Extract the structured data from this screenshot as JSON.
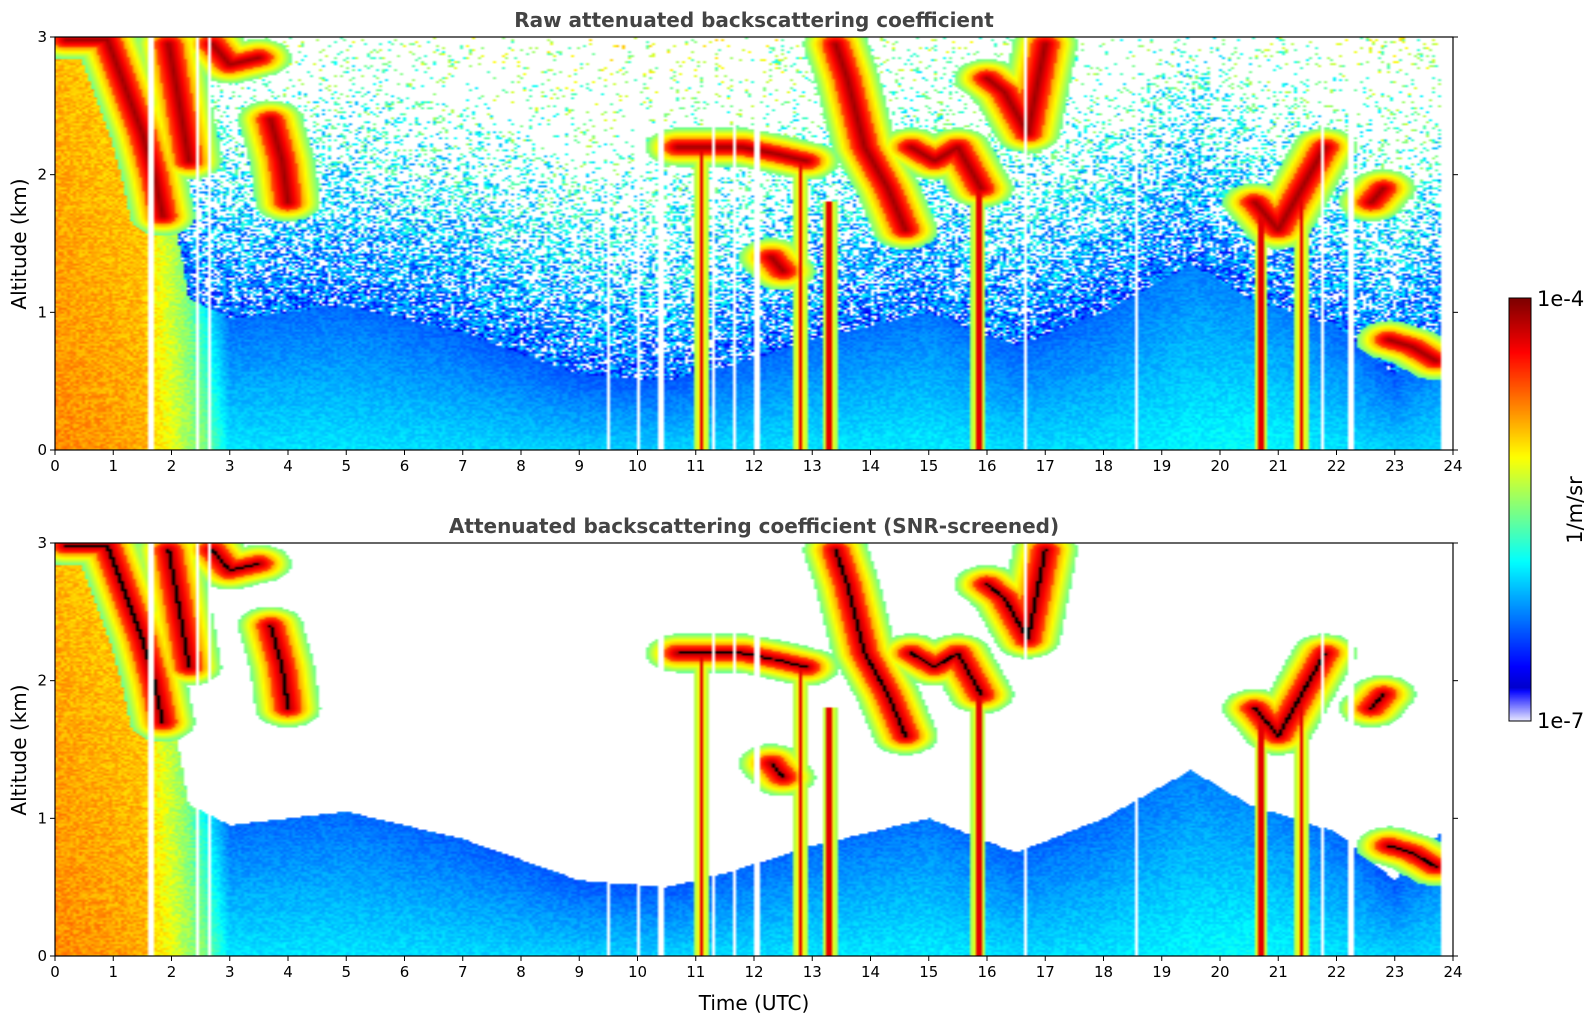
{
  "chart_data": [
    {
      "type": "heatmap",
      "title": "Raw attenuated backscattering coefficient",
      "xlabel": "",
      "ylabel": "Altitude (km)",
      "xlim": [
        0,
        24
      ],
      "ylim": [
        0,
        3
      ],
      "xticks": [
        "0",
        "1",
        "2",
        "3",
        "4",
        "5",
        "6",
        "7",
        "8",
        "9",
        "10",
        "11",
        "12",
        "13",
        "14",
        "15",
        "16",
        "17",
        "18",
        "19",
        "20",
        "21",
        "22",
        "23",
        "24"
      ],
      "yticks": [
        "0",
        "1",
        "2",
        "3"
      ],
      "screened": false
    },
    {
      "type": "heatmap",
      "title": "Attenuated backscattering coefficient (SNR-screened)",
      "xlabel": "Time (UTC)",
      "ylabel": "Altitude (km)",
      "xlim": [
        0,
        24
      ],
      "ylim": [
        0,
        3
      ],
      "xticks": [
        "0",
        "1",
        "2",
        "3",
        "4",
        "5",
        "6",
        "7",
        "8",
        "9",
        "10",
        "11",
        "12",
        "13",
        "14",
        "15",
        "16",
        "17",
        "18",
        "19",
        "20",
        "21",
        "22",
        "23",
        "24"
      ],
      "yticks": [
        "0",
        "1",
        "2",
        "3"
      ],
      "screened": true
    }
  ],
  "colorbar": {
    "label": "1/m/sr",
    "max_label": "1e-4",
    "min_label": "1e-7",
    "scale": "log",
    "colormap": "jet"
  },
  "features": {
    "data_end_hour": 23.8,
    "near_surface_layers": [
      {
        "hour": 0.0,
        "top_km": 3.0,
        "level": 0.75
      },
      {
        "hour": 1.5,
        "top_km": 3.0,
        "level": 0.72
      },
      {
        "hour": 2.3,
        "top_km": 1.1,
        "level": 0.55
      },
      {
        "hour": 3.0,
        "top_km": 0.95,
        "level": 0.3
      },
      {
        "hour": 5.0,
        "top_km": 1.05,
        "level": 0.3
      },
      {
        "hour": 7.0,
        "top_km": 0.85,
        "level": 0.29
      },
      {
        "hour": 9.0,
        "top_km": 0.55,
        "level": 0.28
      },
      {
        "hour": 10.5,
        "top_km": 0.5,
        "level": 0.28
      },
      {
        "hour": 11.5,
        "top_km": 0.6,
        "level": 0.29
      },
      {
        "hour": 13.0,
        "top_km": 0.8,
        "level": 0.3
      },
      {
        "hour": 15.0,
        "top_km": 1.0,
        "level": 0.31
      },
      {
        "hour": 16.5,
        "top_km": 0.75,
        "level": 0.29
      },
      {
        "hour": 18.0,
        "top_km": 1.0,
        "level": 0.3
      },
      {
        "hour": 19.5,
        "top_km": 1.35,
        "level": 0.32
      },
      {
        "hour": 20.5,
        "top_km": 1.1,
        "level": 0.33
      },
      {
        "hour": 22.0,
        "top_km": 0.9,
        "level": 0.3
      },
      {
        "hour": 23.0,
        "top_km": 0.55,
        "level": 0.28
      },
      {
        "hour": 23.8,
        "top_km": 0.9,
        "level": 0.29
      }
    ],
    "cloud_segments": [
      [
        [
          0.2,
          2.98
        ],
        [
          0.9,
          2.98
        ],
        [
          1.5,
          2.3
        ],
        [
          1.7,
          2.0
        ],
        [
          1.85,
          1.7
        ]
      ],
      [
        [
          1.95,
          2.95
        ],
        [
          2.1,
          2.6
        ],
        [
          2.3,
          2.1
        ]
      ],
      [
        [
          2.7,
          2.95
        ],
        [
          3.0,
          2.8
        ],
        [
          3.5,
          2.85
        ]
      ],
      [
        [
          3.7,
          2.4
        ],
        [
          3.9,
          2.1
        ],
        [
          4.0,
          1.8
        ]
      ],
      [
        [
          10.7,
          2.2
        ],
        [
          11.2,
          2.2
        ],
        [
          11.8,
          2.2
        ],
        [
          12.4,
          2.15
        ],
        [
          12.9,
          2.1
        ]
      ],
      [
        [
          13.4,
          2.95
        ],
        [
          13.6,
          2.7
        ],
        [
          13.9,
          2.2
        ],
        [
          14.3,
          1.9
        ],
        [
          14.6,
          1.6
        ]
      ],
      [
        [
          14.7,
          2.2
        ],
        [
          15.1,
          2.1
        ],
        [
          15.5,
          2.2
        ],
        [
          15.9,
          1.9
        ]
      ],
      [
        [
          16.0,
          2.7
        ],
        [
          16.3,
          2.6
        ],
        [
          16.7,
          2.3
        ],
        [
          17.0,
          2.95
        ]
      ],
      [
        [
          20.6,
          1.8
        ],
        [
          21.0,
          1.6
        ],
        [
          21.4,
          1.9
        ],
        [
          21.8,
          2.2
        ]
      ],
      [
        [
          22.6,
          1.8
        ],
        [
          22.8,
          1.9
        ]
      ],
      [
        [
          12.3,
          1.4
        ],
        [
          12.5,
          1.3
        ]
      ],
      [
        [
          22.9,
          0.8
        ],
        [
          23.3,
          0.75
        ],
        [
          23.7,
          0.65
        ]
      ]
    ],
    "precip_columns": [
      {
        "hour": 12.8,
        "bottom_km": 0.0,
        "top_km": 2.1
      },
      {
        "hour": 13.3,
        "bottom_km": 0.0,
        "top_km": 1.8
      },
      {
        "hour": 15.85,
        "bottom_km": 0.0,
        "top_km": 1.9
      },
      {
        "hour": 21.4,
        "bottom_km": 0.0,
        "top_km": 1.9
      },
      {
        "hour": 11.1,
        "bottom_km": 0.0,
        "top_km": 2.2
      },
      {
        "hour": 20.7,
        "bottom_km": 0.0,
        "top_km": 1.7
      }
    ],
    "gap_hours": [
      1.65,
      2.45,
      2.65,
      9.5,
      10.0,
      10.4,
      11.3,
      11.65,
      12.05,
      16.65,
      18.55,
      21.75,
      22.25
    ]
  }
}
